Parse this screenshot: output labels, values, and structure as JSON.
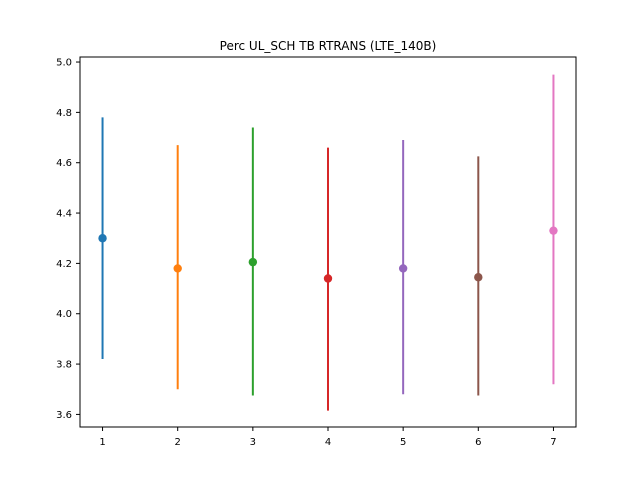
{
  "chart_data": {
    "type": "scatter",
    "title": "Perc UL_SCH TB RTRANS (LTE_140B)",
    "xlabel": "",
    "ylabel": "",
    "x_ticks": [
      1,
      2,
      3,
      4,
      5,
      6,
      7
    ],
    "y_ticks": [
      3.6,
      3.8,
      4.0,
      4.2,
      4.4,
      4.6,
      4.8,
      5.0
    ],
    "y_tick_labels": [
      "3.6",
      "3.8",
      "4.0",
      "4.2",
      "4.4",
      "4.6",
      "4.8",
      "5.0"
    ],
    "xlim": [
      0.7,
      7.3
    ],
    "ylim": [
      3.55,
      5.02
    ],
    "grid": false,
    "legend": "none",
    "series": [
      {
        "x": 1,
        "y": 4.3,
        "error_low": 3.82,
        "error_high": 4.78,
        "color": "#1f77b4"
      },
      {
        "x": 2,
        "y": 4.18,
        "error_low": 3.7,
        "error_high": 4.67,
        "color": "#ff7f0e"
      },
      {
        "x": 3,
        "y": 4.205,
        "error_low": 3.675,
        "error_high": 4.74,
        "color": "#2ca02c"
      },
      {
        "x": 4,
        "y": 4.14,
        "error_low": 3.615,
        "error_high": 4.66,
        "color": "#d62728"
      },
      {
        "x": 5,
        "y": 4.18,
        "error_low": 3.68,
        "error_high": 4.69,
        "color": "#9467bd"
      },
      {
        "x": 6,
        "y": 4.145,
        "error_low": 3.675,
        "error_high": 4.625,
        "color": "#8c564b"
      },
      {
        "x": 7,
        "y": 4.33,
        "error_low": 3.72,
        "error_high": 4.95,
        "color": "#e377c2"
      }
    ]
  }
}
